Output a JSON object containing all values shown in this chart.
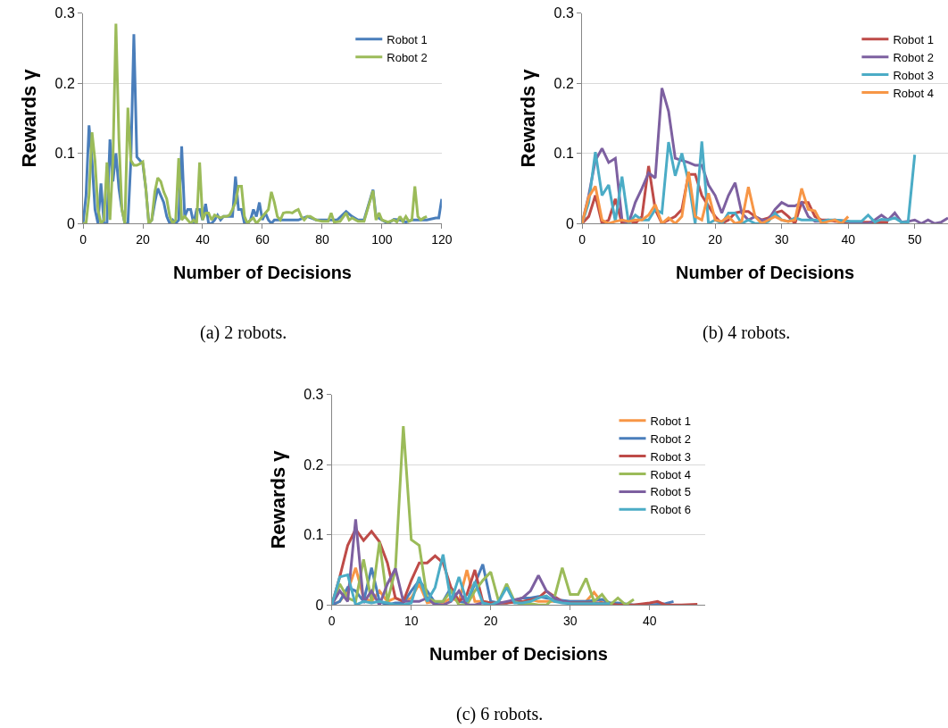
{
  "chart_data": [
    {
      "type": "line",
      "xlabel": "Number of Decisions",
      "ylabel": "Rewards γ",
      "annotations": [
        "(a) 2 robots."
      ],
      "xlim": [
        0,
        120
      ],
      "xticks": [
        0,
        20,
        40,
        60,
        80,
        100,
        120
      ],
      "ylim": [
        0,
        0.3
      ],
      "yticks": [
        0,
        0.1,
        0.2,
        0.3
      ],
      "grid": "y",
      "legend": "top right",
      "marker": "none",
      "line_style": "solid",
      "series": [
        {
          "name": "Robot 1",
          "color": "#4a7ebb",
          "x": [
            0,
            1,
            2,
            3,
            4,
            5,
            6,
            7,
            8,
            9,
            10,
            11,
            12,
            13,
            14,
            15,
            16,
            17,
            18,
            19,
            20,
            21,
            22,
            23,
            24,
            25,
            26,
            27,
            28,
            29,
            30,
            31,
            32,
            33,
            34,
            35,
            36,
            37,
            38,
            39,
            40,
            41,
            42,
            43,
            44,
            45,
            46,
            47,
            48,
            49,
            50,
            51,
            52,
            53,
            54,
            55,
            56,
            57,
            58,
            59,
            60,
            61,
            62,
            63,
            64,
            66,
            68,
            70,
            72,
            75,
            78,
            80,
            82,
            85,
            88,
            90,
            92,
            94,
            97,
            98,
            100,
            102,
            104,
            106,
            108,
            110,
            112,
            115,
            118,
            119,
            120
          ],
          "values": [
            0,
            0.04,
            0.14,
            0.09,
            0.02,
            0,
            0.057,
            0,
            0,
            0.12,
            0.06,
            0.1,
            0.05,
            0.02,
            0,
            0,
            0.09,
            0.27,
            0.095,
            0.09,
            0.085,
            0.05,
            0,
            0.005,
            0.03,
            0.05,
            0.04,
            0.03,
            0.01,
            0,
            0.005,
            0,
            0.005,
            0.11,
            0.01,
            0.02,
            0.02,
            0,
            0.02,
            0.02,
            0.005,
            0.028,
            0,
            0,
            0.005,
            0.012,
            0.005,
            0.01,
            0.01,
            0.01,
            0.01,
            0.067,
            0.02,
            0.02,
            0,
            0,
            0.005,
            0.02,
            0.01,
            0.03,
            0.005,
            0.015,
            0.005,
            0,
            0.005,
            0.005,
            0.005,
            0.005,
            0.005,
            0.01,
            0.005,
            0.005,
            0.005,
            0.005,
            0.017,
            0.01,
            0.005,
            0.005,
            0.048,
            0.01,
            0.005,
            0,
            0.006,
            0.005,
            0.002,
            0.005,
            0.005,
            0.005,
            0.008,
            0.008,
            0.035
          ]
        },
        {
          "name": "Robot 2",
          "color": "#9bbb59",
          "x": [
            0,
            1,
            2,
            3,
            4,
            5,
            6,
            7,
            8,
            9,
            10,
            11,
            12,
            13,
            14,
            15,
            16,
            17,
            18,
            19,
            20,
            21,
            22,
            23,
            24,
            25,
            26,
            27,
            28,
            29,
            30,
            31,
            32,
            33,
            34,
            35,
            36,
            37,
            38,
            39,
            40,
            41,
            42,
            43,
            44,
            45,
            46,
            47,
            48,
            49,
            50,
            51,
            52,
            53,
            54,
            55,
            56,
            57,
            58,
            59,
            60,
            61,
            62,
            63,
            64,
            65,
            66,
            67,
            68,
            69,
            70,
            71,
            72,
            73,
            74,
            75,
            76,
            78,
            80,
            82,
            83,
            84,
            86,
            88,
            89,
            90,
            92,
            94,
            97,
            98,
            99,
            100,
            102,
            104,
            105,
            106,
            107,
            108,
            109,
            110,
            111,
            112,
            113,
            114,
            115
          ],
          "values": [
            0,
            0,
            0.04,
            0.13,
            0.09,
            0.02,
            0,
            0.005,
            0.087,
            0.005,
            0.09,
            0.285,
            0.12,
            0.02,
            0,
            0.165,
            0.09,
            0.083,
            0.083,
            0.085,
            0.088,
            0.05,
            0,
            0.005,
            0.045,
            0.065,
            0.06,
            0.045,
            0.035,
            0.01,
            0,
            0.005,
            0.093,
            0.005,
            0.01,
            0.005,
            0,
            0.005,
            0,
            0.087,
            0.005,
            0.015,
            0.015,
            0.005,
            0.012,
            0.01,
            0.008,
            0.01,
            0.01,
            0.012,
            0.02,
            0.03,
            0.053,
            0.053,
            0.01,
            0,
            0.005,
            0.008,
            0,
            0.005,
            0.01,
            0.015,
            0.02,
            0.045,
            0.03,
            0.01,
            0.005,
            0.015,
            0.016,
            0.016,
            0.015,
            0.018,
            0.02,
            0.01,
            0.005,
            0.01,
            0.01,
            0.005,
            0.003,
            0.003,
            0.015,
            0.002,
            0.003,
            0.015,
            0.005,
            0.008,
            0.003,
            0.003,
            0.047,
            0.005,
            0.015,
            0.005,
            0.002,
            0.005,
            0.002,
            0.01,
            0.003,
            0.01,
            0.003,
            0.005,
            0.053,
            0.01,
            0.005,
            0.008,
            0.01
          ]
        }
      ]
    },
    {
      "type": "line",
      "xlabel": "Number of Decisions",
      "ylabel": "Rewards γ",
      "annotations": [
        "(b) 4 robots."
      ],
      "xlim": [
        0,
        55
      ],
      "xticks": [
        0,
        10,
        20,
        30,
        40,
        50
      ],
      "ylim": [
        0,
        0.3
      ],
      "yticks": [
        0,
        0.1,
        0.2,
        0.3
      ],
      "grid": "y",
      "legend": "top right",
      "marker": "none",
      "line_style": "solid",
      "series": [
        {
          "name": "Robot 1",
          "color": "#be4b48",
          "x": [
            0,
            1,
            2,
            3,
            4,
            5,
            6,
            7,
            8,
            9,
            10,
            11,
            12,
            13,
            14,
            15,
            16,
            17,
            18,
            19,
            20,
            21,
            22,
            23,
            24,
            25,
            26,
            27,
            28,
            29,
            30,
            31,
            32,
            33,
            34,
            35,
            36,
            37,
            38,
            40,
            42,
            44,
            46
          ],
          "values": [
            0,
            0.01,
            0.04,
            0,
            0.005,
            0.035,
            0,
            0.005,
            0,
            0.01,
            0.082,
            0.02,
            0,
            0.005,
            0.01,
            0.02,
            0.07,
            0.07,
            0.04,
            0.025,
            0.01,
            0,
            0.005,
            0.015,
            0.017,
            0.017,
            0.01,
            0.005,
            0.008,
            0.015,
            0.018,
            0.01,
            0,
            0.03,
            0.03,
            0.01,
            0.005,
            0.005,
            0.003,
            0.002,
            0.002,
            0.002,
            0.002
          ]
        },
        {
          "name": "Robot 2",
          "color": "#7d60a0",
          "x": [
            0,
            1,
            2,
            3,
            4,
            5,
            6,
            7,
            8,
            9,
            10,
            11,
            12,
            13,
            14,
            15,
            16,
            17,
            18,
            19,
            20,
            21,
            22,
            23,
            24,
            25,
            26,
            27,
            28,
            29,
            30,
            31,
            32,
            33,
            34,
            35,
            36,
            38,
            40,
            41,
            43,
            44,
            45,
            46,
            47,
            48,
            49,
            50,
            51,
            52,
            53,
            54,
            55
          ],
          "values": [
            0,
            0.04,
            0.09,
            0.107,
            0.087,
            0.093,
            0.005,
            0,
            0.03,
            0.05,
            0.072,
            0.065,
            0.193,
            0.16,
            0.093,
            0.09,
            0.087,
            0.083,
            0.083,
            0.055,
            0.04,
            0.015,
            0.04,
            0.058,
            0.015,
            0.005,
            0.01,
            0.005,
            0.005,
            0.02,
            0.03,
            0.025,
            0.025,
            0.03,
            0.01,
            0.003,
            0.003,
            0.005,
            0.003,
            0,
            0,
            0.005,
            0.012,
            0.005,
            0.015,
            0.002,
            0.003,
            0.005,
            0,
            0.005,
            0,
            0.002,
            0.008
          ]
        },
        {
          "name": "Robot 3",
          "color": "#4bacc6",
          "x": [
            0,
            1,
            2,
            3,
            4,
            5,
            6,
            7,
            8,
            9,
            10,
            11,
            12,
            13,
            14,
            15,
            16,
            17,
            18,
            19,
            20,
            21,
            22,
            23,
            24,
            25,
            26,
            27,
            28,
            29,
            30,
            31,
            32,
            33,
            34,
            35,
            36,
            37,
            38,
            40,
            42,
            43,
            44,
            45,
            46,
            47,
            48,
            49,
            50
          ],
          "values": [
            0,
            0.03,
            0.102,
            0.04,
            0.055,
            0.003,
            0.067,
            0,
            0.012,
            0.005,
            0.005,
            0.02,
            0.015,
            0.116,
            0.068,
            0.1,
            0.06,
            0,
            0.117,
            0,
            0.005,
            0,
            0.015,
            0.015,
            0,
            0.005,
            0,
            0,
            0.003,
            0.015,
            0.005,
            0.003,
            0.008,
            0.005,
            0.005,
            0.005,
            0.003,
            0.005,
            0.005,
            0.003,
            0.003,
            0.012,
            0.002,
            0.006,
            0.005,
            0.008,
            0.002,
            0.002,
            0.098
          ]
        },
        {
          "name": "Robot 4",
          "color": "#f79646",
          "x": [
            0,
            1,
            2,
            3,
            4,
            5,
            6,
            7,
            8,
            9,
            10,
            11,
            12,
            13,
            14,
            15,
            16,
            17,
            18,
            19,
            20,
            21,
            22,
            23,
            24,
            25,
            26,
            27,
            28,
            29,
            30,
            31,
            32,
            33,
            34,
            35,
            36,
            37,
            38,
            39,
            40
          ],
          "values": [
            0,
            0.038,
            0.053,
            0.005,
            0,
            0.003,
            0.005,
            0.003,
            0.005,
            0.005,
            0.012,
            0.027,
            0,
            0.008,
            0,
            0.01,
            0.074,
            0.01,
            0.005,
            0.043,
            0.005,
            0.003,
            0.01,
            0,
            0.003,
            0.052,
            0.01,
            0,
            0.005,
            0.01,
            0.005,
            0.003,
            0.005,
            0.05,
            0.02,
            0.018,
            0,
            0.003,
            0.005,
            0,
            0.01
          ]
        }
      ]
    },
    {
      "type": "line",
      "xlabel": "Number of Decisions",
      "ylabel": "Rewards γ",
      "annotations": [
        "(c) 6 robots."
      ],
      "xlim": [
        0,
        47
      ],
      "xticks": [
        0,
        10,
        20,
        30,
        40
      ],
      "ylim": [
        0,
        0.3
      ],
      "yticks": [
        0,
        0.1,
        0.2,
        0.3
      ],
      "grid": "y",
      "legend": "top right",
      "marker": "none",
      "line_style": "solid",
      "series": [
        {
          "name": "Robot 1",
          "color": "#f79646",
          "x": [
            0,
            1,
            2,
            3,
            4,
            5,
            6,
            7,
            8,
            9,
            10,
            11,
            12,
            13,
            14,
            15,
            16,
            17,
            18,
            19,
            20,
            22,
            24,
            26,
            28,
            32,
            33,
            34,
            35
          ],
          "values": [
            0,
            0.005,
            0.02,
            0.053,
            0.01,
            0.005,
            0.02,
            0.005,
            0.01,
            0.005,
            0.01,
            0.03,
            0.003,
            0.005,
            0.003,
            0.01,
            0.005,
            0.05,
            0.005,
            0.005,
            0.003,
            0.003,
            0.01,
            0.005,
            0.005,
            0.005,
            0.018,
            0.003,
            0.003
          ]
        },
        {
          "name": "Robot 2",
          "color": "#4a7ebb",
          "x": [
            0,
            1,
            2,
            3,
            4,
            5,
            6,
            7,
            8,
            9,
            10,
            11,
            12,
            13,
            14,
            15,
            16,
            17,
            18,
            19,
            20,
            21,
            22,
            23,
            24,
            25,
            26,
            27,
            28,
            30,
            32,
            34,
            35,
            36,
            38,
            40,
            42,
            43
          ],
          "values": [
            0,
            0.005,
            0.025,
            0.02,
            0.005,
            0.053,
            0.005,
            0,
            0.003,
            0.003,
            0.02,
            0.035,
            0.02,
            0.003,
            0.005,
            0.025,
            0.005,
            0.003,
            0.03,
            0.058,
            0.005,
            0.003,
            0.003,
            0.005,
            0.01,
            0.01,
            0.012,
            0.01,
            0.008,
            0.005,
            0.005,
            0.008,
            0.003,
            0.003,
            0,
            0,
            0.002,
            0.005
          ]
        },
        {
          "name": "Robot 3",
          "color": "#be4b48",
          "x": [
            0,
            1,
            2,
            3,
            4,
            5,
            6,
            7,
            8,
            9,
            10,
            11,
            12,
            13,
            14,
            15,
            16,
            17,
            18,
            19,
            20,
            22,
            24,
            26,
            27,
            28,
            29,
            30,
            32,
            34,
            36,
            38,
            40,
            41,
            42,
            44,
            46
          ],
          "values": [
            0,
            0.04,
            0.085,
            0.108,
            0.092,
            0.105,
            0.09,
            0.06,
            0.01,
            0.005,
            0.035,
            0.06,
            0.06,
            0.07,
            0.06,
            0.025,
            0.005,
            0.015,
            0.05,
            0.005,
            0.003,
            0.003,
            0.005,
            0.01,
            0.02,
            0.012,
            0.005,
            0.003,
            0.003,
            0.003,
            0,
            0,
            0.003,
            0.005,
            0,
            0,
            0.001
          ]
        },
        {
          "name": "Robot 4",
          "color": "#9bbb59",
          "x": [
            0,
            1,
            2,
            3,
            4,
            5,
            6,
            7,
            8,
            9,
            10,
            11,
            12,
            13,
            14,
            15,
            16,
            17,
            18,
            19,
            20,
            21,
            22,
            23,
            24,
            25,
            26,
            27,
            28,
            29,
            30,
            31,
            32,
            33,
            34,
            35,
            36,
            37,
            38
          ],
          "values": [
            0,
            0.03,
            0.01,
            0.005,
            0.065,
            0.005,
            0.09,
            0.005,
            0.05,
            0.255,
            0.093,
            0.085,
            0.01,
            0.005,
            0.005,
            0.02,
            0,
            0,
            0.02,
            0.035,
            0.047,
            0.005,
            0.03,
            0.005,
            0,
            0.002,
            0,
            0,
            0.01,
            0.053,
            0.015,
            0.015,
            0.038,
            0.005,
            0.015,
            0,
            0.01,
            0,
            0.008
          ]
        },
        {
          "name": "Robot 5",
          "color": "#7d60a0",
          "x": [
            0,
            1,
            2,
            3,
            4,
            5,
            6,
            7,
            8,
            9,
            10,
            11,
            12,
            13,
            14,
            15,
            16,
            17,
            18,
            19,
            20,
            22,
            24,
            25,
            26,
            27,
            28,
            29,
            30
          ],
          "values": [
            0,
            0.02,
            0.005,
            0.122,
            0.003,
            0.02,
            0,
            0.03,
            0.052,
            0.005,
            0.005,
            0.005,
            0.01,
            0,
            0,
            0.005,
            0.02,
            0,
            0,
            0.003,
            0,
            0.005,
            0.01,
            0.02,
            0.042,
            0.02,
            0.01,
            0.005,
            0.003
          ]
        },
        {
          "name": "Robot 6",
          "color": "#4bacc6",
          "x": [
            0,
            1,
            2,
            3,
            4,
            5,
            6,
            7,
            8,
            9,
            10,
            11,
            12,
            13,
            14,
            15,
            16,
            17,
            18,
            19,
            20,
            21,
            22,
            23,
            24,
            25,
            26,
            27,
            28,
            29,
            30,
            32,
            34,
            35
          ],
          "values": [
            0,
            0.04,
            0.043,
            0,
            0.005,
            0.003,
            0.005,
            0.003,
            0,
            0,
            0.003,
            0.04,
            0.005,
            0.025,
            0.072,
            0.005,
            0.04,
            0.005,
            0.033,
            0.003,
            0,
            0.005,
            0.025,
            0.003,
            0.003,
            0.005,
            0.01,
            0.013,
            0.005,
            0.003,
            0.002,
            0.002,
            0.002,
            0.002
          ]
        }
      ]
    }
  ]
}
